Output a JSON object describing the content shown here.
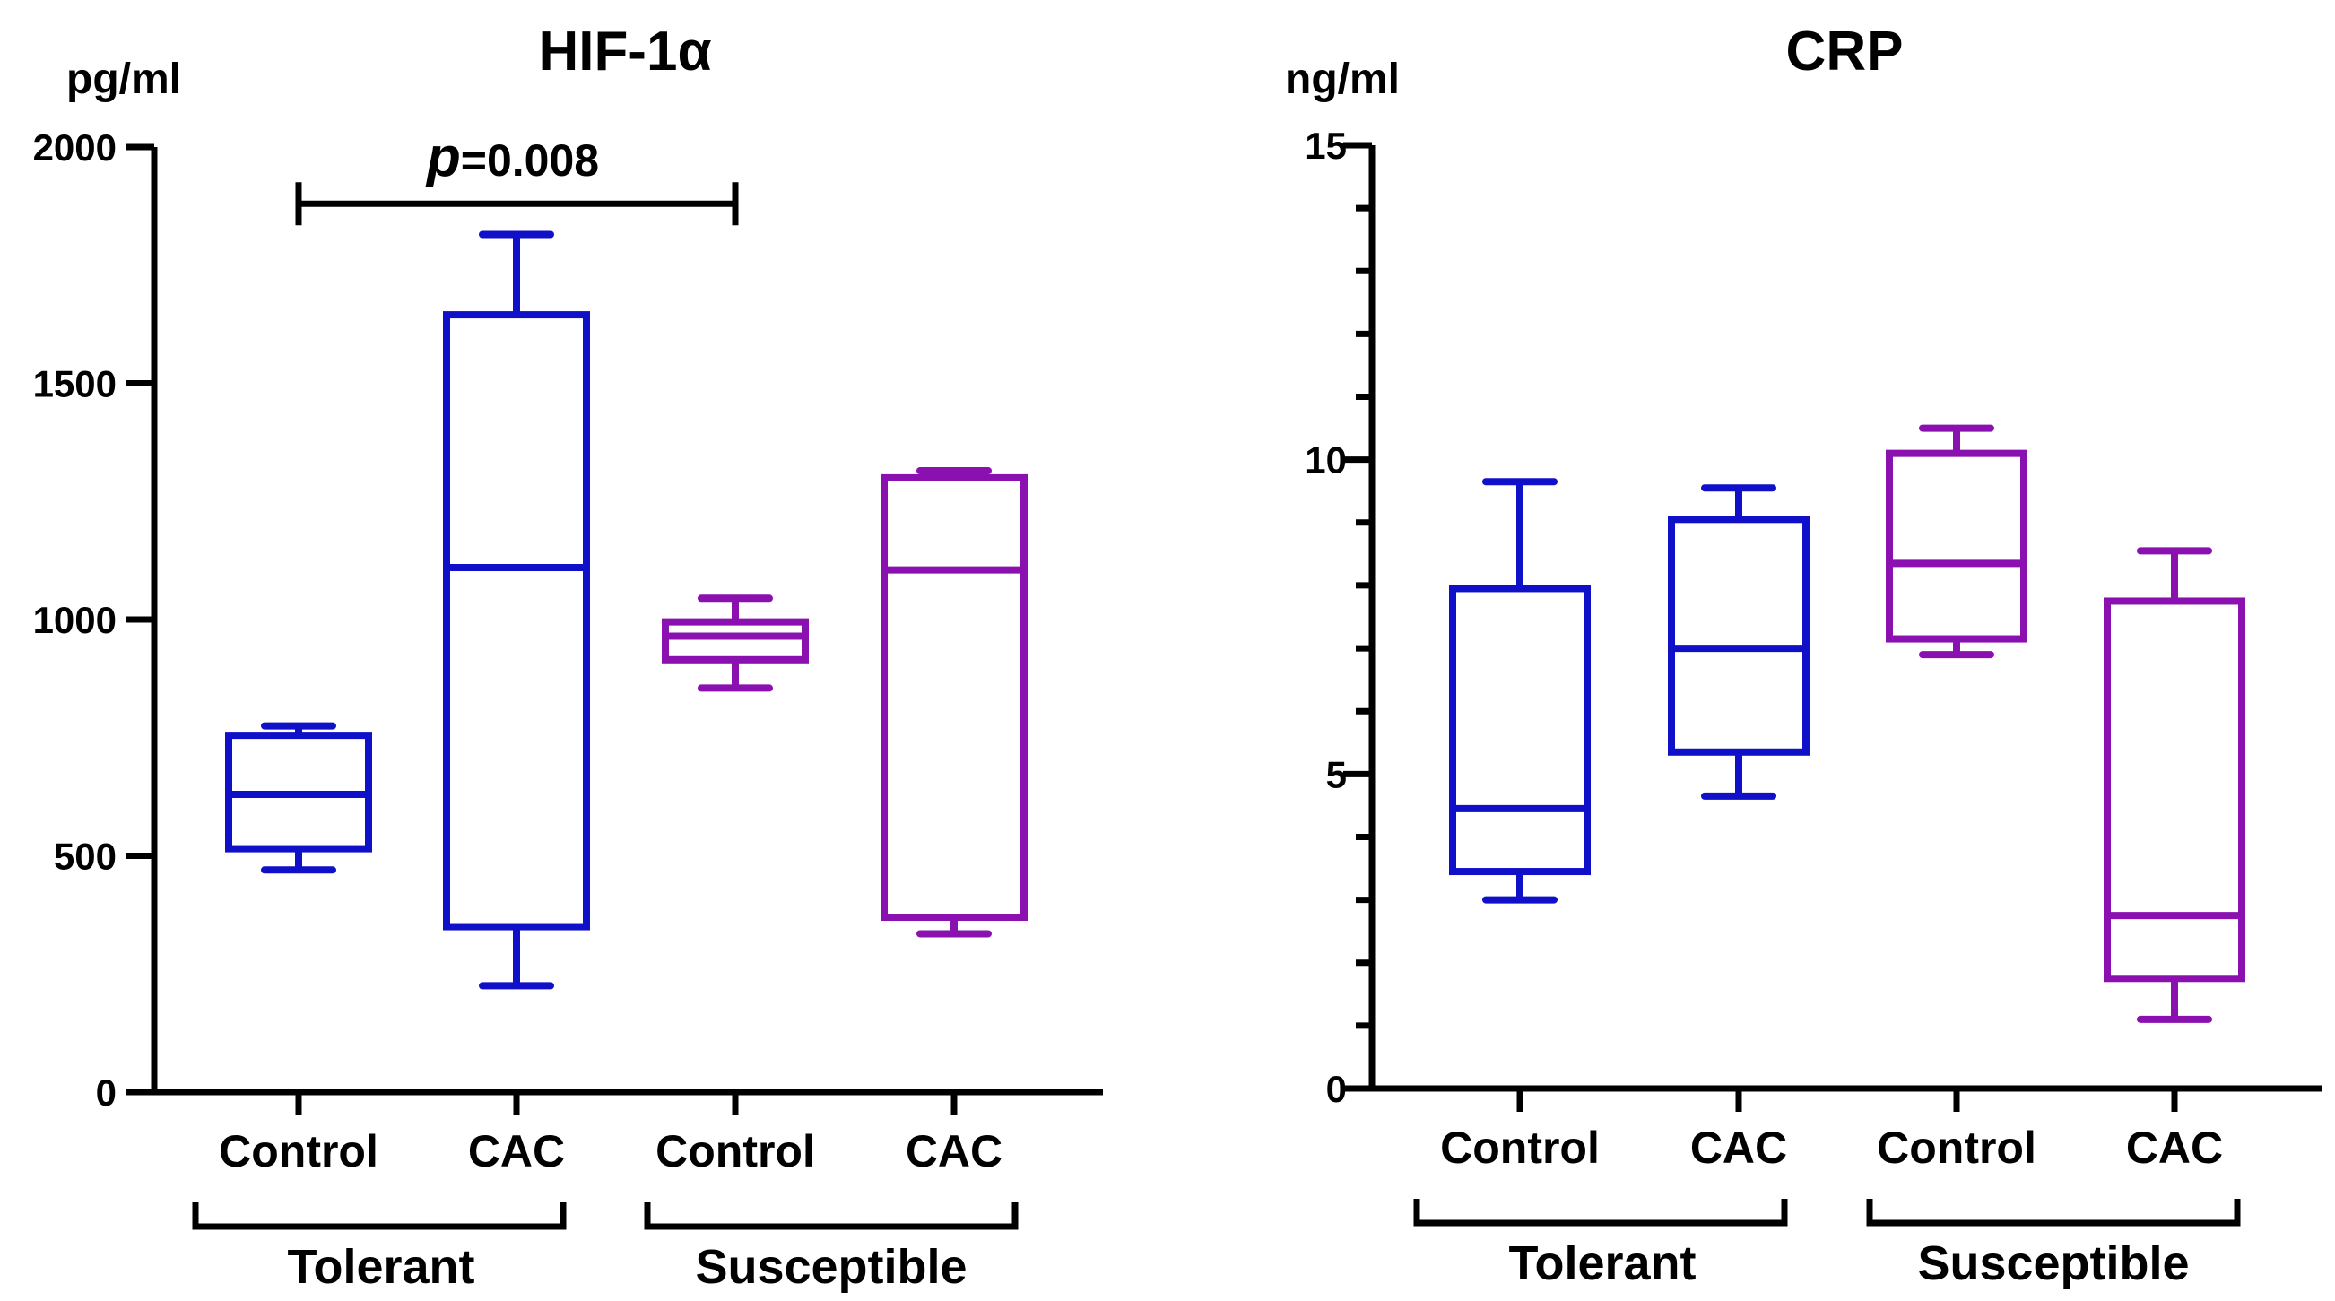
{
  "chart_data": [
    {
      "type": "box",
      "title": "HIF-1α",
      "ylabel": "pg/ml",
      "ylim": [
        0,
        2000
      ],
      "yticks": [
        0,
        500,
        1000,
        1500,
        2000
      ],
      "categories": [
        "Control",
        "CAC",
        "Control",
        "CAC"
      ],
      "groups": [
        {
          "label": "Tolerant",
          "categories": [
            0,
            1
          ]
        },
        {
          "label": "Susceptible",
          "categories": [
            2,
            3
          ]
        }
      ],
      "boxes": [
        {
          "category": "Control",
          "group": "Tolerant",
          "color": "#1010c8",
          "min": 470,
          "q1": 515,
          "median": 630,
          "q3": 755,
          "max": 775
        },
        {
          "category": "CAC",
          "group": "Tolerant",
          "color": "#1010c8",
          "min": 225,
          "q1": 350,
          "median": 1110,
          "q3": 1645,
          "max": 1815
        },
        {
          "category": "Control",
          "group": "Susceptible",
          "color": "#8a10b0",
          "min": 855,
          "q1": 915,
          "median": 965,
          "q3": 995,
          "max": 1045
        },
        {
          "category": "CAC",
          "group": "Susceptible",
          "color": "#8a10b0",
          "min": 335,
          "q1": 370,
          "median": 1105,
          "q3": 1300,
          "max": 1315
        }
      ],
      "annotation": {
        "p_symbol": "p",
        "p_value": "=0.008",
        "from_category": 0,
        "to_category": 2,
        "y": 1880
      }
    },
    {
      "type": "box",
      "title": "CRP",
      "ylabel": "ng/ml",
      "ylim": [
        0,
        15
      ],
      "yticks": [
        0,
        5,
        10,
        15
      ],
      "minor_step": 1,
      "categories": [
        "Control",
        "CAC",
        "Control",
        "CAC"
      ],
      "groups": [
        {
          "label": "Tolerant",
          "categories": [
            0,
            1
          ]
        },
        {
          "label": "Susceptible",
          "categories": [
            2,
            3
          ]
        }
      ],
      "boxes": [
        {
          "category": "Control",
          "group": "Tolerant",
          "color": "#1010c8",
          "min": 3.0,
          "q1": 3.45,
          "median": 4.45,
          "q3": 7.95,
          "max": 9.65
        },
        {
          "category": "CAC",
          "group": "Tolerant",
          "color": "#1010c8",
          "min": 4.65,
          "q1": 5.35,
          "median": 7.0,
          "q3": 9.05,
          "max": 9.55
        },
        {
          "category": "Control",
          "group": "Susceptible",
          "color": "#8a10b0",
          "min": 6.9,
          "q1": 7.15,
          "median": 8.35,
          "q3": 10.1,
          "max": 10.5
        },
        {
          "category": "CAC",
          "group": "Susceptible",
          "color": "#8a10b0",
          "min": 1.1,
          "q1": 1.75,
          "median": 2.75,
          "q3": 7.75,
          "max": 8.55
        }
      ]
    }
  ]
}
